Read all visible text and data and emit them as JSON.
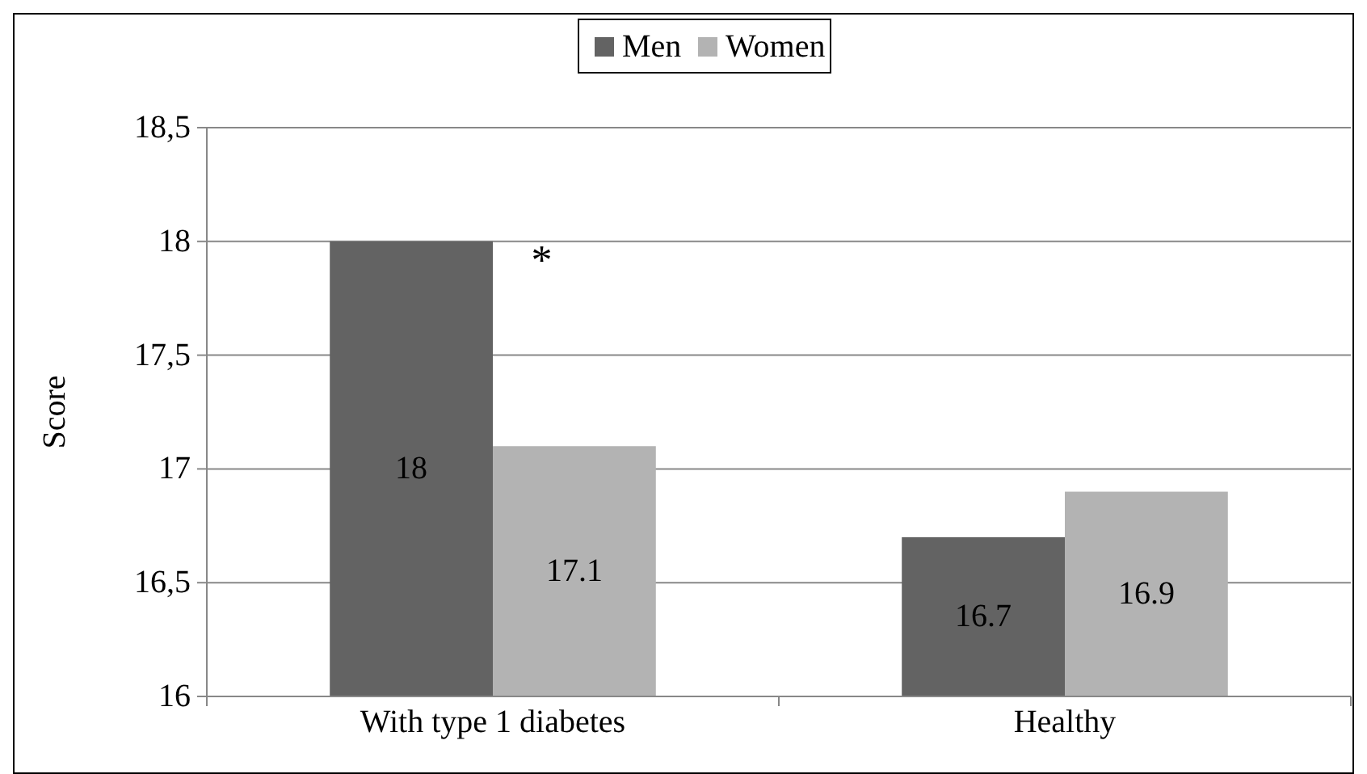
{
  "chart_data": {
    "type": "bar",
    "ylabel": "Score",
    "categories": [
      "With type 1 diabetes",
      "Healthy"
    ],
    "series": [
      {
        "name": "Men",
        "color": "#636363",
        "values": [
          18,
          16.7
        ]
      },
      {
        "name": "Women",
        "color": "#b3b3b3",
        "values": [
          17.1,
          16.9
        ]
      }
    ],
    "ylim": [
      16,
      18.5
    ],
    "yticks": [
      16,
      {
        "value": 16.5,
        "label": "16,5"
      },
      17,
      {
        "value": 17.5,
        "label": "17,5"
      },
      18,
      {
        "value": 18.5,
        "label": "18,5"
      }
    ],
    "grid": "y",
    "legend": "top",
    "data_labels": true,
    "annotations": [
      "*"
    ]
  }
}
